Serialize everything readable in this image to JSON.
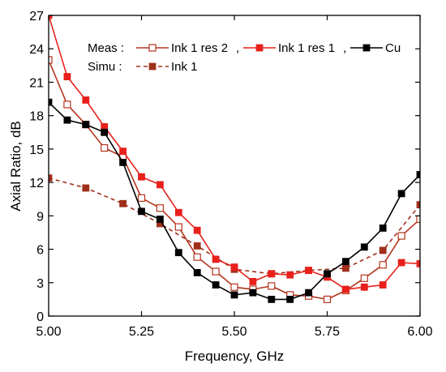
{
  "chart_data": {
    "type": "line",
    "xlabel": "Frequency, GHz",
    "ylabel": "Axial Ratio, dB",
    "xlim": [
      5.0,
      6.0
    ],
    "ylim": [
      0,
      27
    ],
    "xticks": [
      5.0,
      5.25,
      5.5,
      5.75,
      6.0
    ],
    "xtick_labels": [
      "5.00",
      "5.25",
      "5.50",
      "5.75",
      "6.00"
    ],
    "yticks": [
      0,
      3,
      6,
      9,
      12,
      15,
      18,
      21,
      24,
      27
    ],
    "ytick_labels": [
      "0",
      "3",
      "6",
      "9",
      "12",
      "15",
      "18",
      "21",
      "24",
      "27"
    ],
    "grid": false,
    "legend_placement": "top",
    "legend_group_labels": {
      "meas": "Meas :",
      "simu": "Simu :"
    },
    "series": [
      {
        "name": "Ink 1 res 2",
        "group": "meas",
        "color": "#b5341e",
        "marker": "open-square",
        "dashed": false,
        "points": [
          [
            5.0,
            23.0
          ],
          [
            5.05,
            19.0
          ],
          [
            5.1,
            17.2
          ],
          [
            5.15,
            15.1
          ],
          [
            5.2,
            14.3
          ],
          [
            5.25,
            10.6
          ],
          [
            5.3,
            9.7
          ],
          [
            5.35,
            8.0
          ],
          [
            5.4,
            5.3
          ],
          [
            5.45,
            4.0
          ],
          [
            5.5,
            2.6
          ],
          [
            5.55,
            2.4
          ],
          [
            5.6,
            2.7
          ],
          [
            5.65,
            1.9
          ],
          [
            5.7,
            1.8
          ],
          [
            5.75,
            1.5
          ],
          [
            5.8,
            2.3
          ],
          [
            5.85,
            3.4
          ],
          [
            5.9,
            4.6
          ],
          [
            5.95,
            7.2
          ],
          [
            6.0,
            8.7
          ]
        ]
      },
      {
        "name": "Ink 1 res 1",
        "group": "meas",
        "color": "#e8201c",
        "marker": "filled-square",
        "dashed": false,
        "points": [
          [
            5.0,
            27.0
          ],
          [
            5.05,
            21.5
          ],
          [
            5.1,
            19.4
          ],
          [
            5.15,
            17.0
          ],
          [
            5.2,
            14.8
          ],
          [
            5.25,
            12.5
          ],
          [
            5.3,
            11.8
          ],
          [
            5.35,
            9.3
          ],
          [
            5.4,
            7.7
          ],
          [
            5.45,
            5.1
          ],
          [
            5.5,
            4.4
          ],
          [
            5.55,
            3.1
          ],
          [
            5.6,
            3.8
          ],
          [
            5.65,
            3.7
          ],
          [
            5.7,
            4.1
          ],
          [
            5.75,
            3.5
          ],
          [
            5.8,
            2.4
          ],
          [
            5.85,
            2.6
          ],
          [
            5.9,
            2.8
          ],
          [
            5.95,
            4.8
          ],
          [
            6.0,
            4.7
          ]
        ]
      },
      {
        "name": "Cu",
        "group": "meas",
        "color": "#000000",
        "marker": "filled-square",
        "dashed": false,
        "points": [
          [
            5.0,
            19.2
          ],
          [
            5.05,
            17.6
          ],
          [
            5.1,
            17.2
          ],
          [
            5.15,
            16.5
          ],
          [
            5.2,
            13.8
          ],
          [
            5.25,
            9.4
          ],
          [
            5.3,
            8.7
          ],
          [
            5.35,
            5.7
          ],
          [
            5.4,
            3.9
          ],
          [
            5.45,
            2.8
          ],
          [
            5.5,
            1.9
          ],
          [
            5.55,
            2.1
          ],
          [
            5.6,
            1.5
          ],
          [
            5.65,
            1.5
          ],
          [
            5.7,
            2.1
          ],
          [
            5.75,
            3.8
          ],
          [
            5.8,
            4.9
          ],
          [
            5.85,
            6.2
          ],
          [
            5.9,
            7.9
          ],
          [
            5.95,
            11.0
          ],
          [
            6.0,
            12.7
          ]
        ]
      },
      {
        "name": "Ink 1",
        "group": "simu",
        "color": "#a0301c",
        "marker": "filled-square",
        "dashed": true,
        "points": [
          [
            5.0,
            12.4
          ],
          [
            5.1,
            11.5
          ],
          [
            5.2,
            10.1
          ],
          [
            5.3,
            8.3
          ],
          [
            5.4,
            6.3
          ],
          [
            5.5,
            4.2
          ],
          [
            5.6,
            3.8
          ],
          [
            5.7,
            4.1
          ],
          [
            5.8,
            4.3
          ],
          [
            5.9,
            5.9
          ],
          [
            6.0,
            10.0
          ]
        ]
      }
    ]
  }
}
